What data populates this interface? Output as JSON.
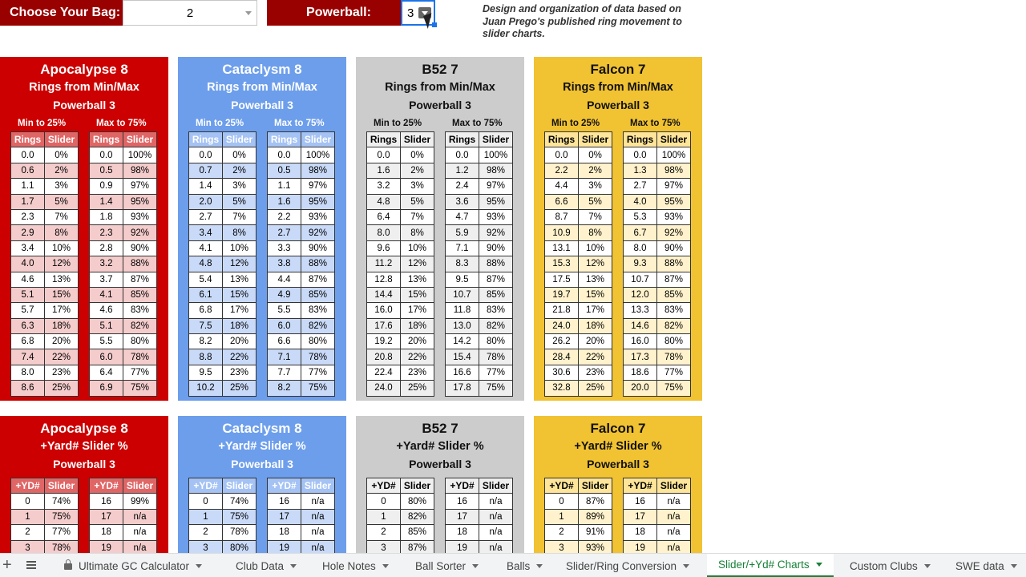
{
  "controls": {
    "bag_label": "Choose Your Bag:",
    "bag_value": "2",
    "powerball_label": "Powerball:",
    "powerball_value": "3",
    "note": "Design and organization of data based on Juan Prego's published ring movement to slider charts."
  },
  "top_panels": [
    {
      "title": "Apocalypse 8",
      "subtitle": "Rings from Min/Max",
      "powerball": "Powerball 3",
      "left_label": "Min to 25%",
      "right_label": "Max to 75%",
      "col1": "Rings",
      "col2": "Slider",
      "rows": [
        [
          "0.0",
          "0%",
          "0.0",
          "100%"
        ],
        [
          "0.6",
          "2%",
          "0.5",
          "98%"
        ],
        [
          "1.1",
          "3%",
          "0.9",
          "97%"
        ],
        [
          "1.7",
          "5%",
          "1.4",
          "95%"
        ],
        [
          "2.3",
          "7%",
          "1.8",
          "93%"
        ],
        [
          "2.9",
          "8%",
          "2.3",
          "92%"
        ],
        [
          "3.4",
          "10%",
          "2.8",
          "90%"
        ],
        [
          "4.0",
          "12%",
          "3.2",
          "88%"
        ],
        [
          "4.6",
          "13%",
          "3.7",
          "87%"
        ],
        [
          "5.1",
          "15%",
          "4.1",
          "85%"
        ],
        [
          "5.7",
          "17%",
          "4.6",
          "83%"
        ],
        [
          "6.3",
          "18%",
          "5.1",
          "82%"
        ],
        [
          "6.8",
          "20%",
          "5.5",
          "80%"
        ],
        [
          "7.4",
          "22%",
          "6.0",
          "78%"
        ],
        [
          "8.0",
          "23%",
          "6.4",
          "77%"
        ],
        [
          "8.6",
          "25%",
          "6.9",
          "75%"
        ]
      ]
    },
    {
      "title": "Cataclysm 8",
      "subtitle": "Rings from Min/Max",
      "powerball": "Powerball 3",
      "left_label": "Min to 25%",
      "right_label": "Max to 75%",
      "col1": "Rings",
      "col2": "Slider",
      "rows": [
        [
          "0.0",
          "0%",
          "0.0",
          "100%"
        ],
        [
          "0.7",
          "2%",
          "0.5",
          "98%"
        ],
        [
          "1.4",
          "3%",
          "1.1",
          "97%"
        ],
        [
          "2.0",
          "5%",
          "1.6",
          "95%"
        ],
        [
          "2.7",
          "7%",
          "2.2",
          "93%"
        ],
        [
          "3.4",
          "8%",
          "2.7",
          "92%"
        ],
        [
          "4.1",
          "10%",
          "3.3",
          "90%"
        ],
        [
          "4.8",
          "12%",
          "3.8",
          "88%"
        ],
        [
          "5.4",
          "13%",
          "4.4",
          "87%"
        ],
        [
          "6.1",
          "15%",
          "4.9",
          "85%"
        ],
        [
          "6.8",
          "17%",
          "5.5",
          "83%"
        ],
        [
          "7.5",
          "18%",
          "6.0",
          "82%"
        ],
        [
          "8.2",
          "20%",
          "6.6",
          "80%"
        ],
        [
          "8.8",
          "22%",
          "7.1",
          "78%"
        ],
        [
          "9.5",
          "23%",
          "7.7",
          "77%"
        ],
        [
          "10.2",
          "25%",
          "8.2",
          "75%"
        ]
      ]
    },
    {
      "title": "B52 7",
      "subtitle": "Rings from Min/Max",
      "powerball": "Powerball 3",
      "left_label": "Min to 25%",
      "right_label": "Max to 75%",
      "col1": "Rings",
      "col2": "Slider",
      "rows": [
        [
          "0.0",
          "0%",
          "0.0",
          "100%"
        ],
        [
          "1.6",
          "2%",
          "1.2",
          "98%"
        ],
        [
          "3.2",
          "3%",
          "2.4",
          "97%"
        ],
        [
          "4.8",
          "5%",
          "3.6",
          "95%"
        ],
        [
          "6.4",
          "7%",
          "4.7",
          "93%"
        ],
        [
          "8.0",
          "8%",
          "5.9",
          "92%"
        ],
        [
          "9.6",
          "10%",
          "7.1",
          "90%"
        ],
        [
          "11.2",
          "12%",
          "8.3",
          "88%"
        ],
        [
          "12.8",
          "13%",
          "9.5",
          "87%"
        ],
        [
          "14.4",
          "15%",
          "10.7",
          "85%"
        ],
        [
          "16.0",
          "17%",
          "11.8",
          "83%"
        ],
        [
          "17.6",
          "18%",
          "13.0",
          "82%"
        ],
        [
          "19.2",
          "20%",
          "14.2",
          "80%"
        ],
        [
          "20.8",
          "22%",
          "15.4",
          "78%"
        ],
        [
          "22.4",
          "23%",
          "16.6",
          "77%"
        ],
        [
          "24.0",
          "25%",
          "17.8",
          "75%"
        ]
      ]
    },
    {
      "title": "Falcon 7",
      "subtitle": "Rings from Min/Max",
      "powerball": "Powerball 3",
      "left_label": "Min to 25%",
      "right_label": "Max to 75%",
      "col1": "Rings",
      "col2": "Slider",
      "rows": [
        [
          "0.0",
          "0%",
          "0.0",
          "100%"
        ],
        [
          "2.2",
          "2%",
          "1.3",
          "98%"
        ],
        [
          "4.4",
          "3%",
          "2.7",
          "97%"
        ],
        [
          "6.6",
          "5%",
          "4.0",
          "95%"
        ],
        [
          "8.7",
          "7%",
          "5.3",
          "93%"
        ],
        [
          "10.9",
          "8%",
          "6.7",
          "92%"
        ],
        [
          "13.1",
          "10%",
          "8.0",
          "90%"
        ],
        [
          "15.3",
          "12%",
          "9.3",
          "88%"
        ],
        [
          "17.5",
          "13%",
          "10.7",
          "87%"
        ],
        [
          "19.7",
          "15%",
          "12.0",
          "85%"
        ],
        [
          "21.8",
          "17%",
          "13.3",
          "83%"
        ],
        [
          "24.0",
          "18%",
          "14.6",
          "82%"
        ],
        [
          "26.2",
          "20%",
          "16.0",
          "80%"
        ],
        [
          "28.4",
          "22%",
          "17.3",
          "78%"
        ],
        [
          "30.6",
          "23%",
          "18.6",
          "77%"
        ],
        [
          "32.8",
          "25%",
          "20.0",
          "75%"
        ]
      ]
    }
  ],
  "bottom_panels": [
    {
      "title": "Apocalypse 8",
      "subtitle": "+Yard# Slider %",
      "powerball": "Powerball 3",
      "col1": "+YD#",
      "col2": "Slider",
      "rows": [
        [
          "0",
          "74%",
          "16",
          "99%"
        ],
        [
          "1",
          "75%",
          "17",
          "n/a"
        ],
        [
          "2",
          "77%",
          "18",
          "n/a"
        ],
        [
          "3",
          "78%",
          "19",
          "n/a"
        ]
      ]
    },
    {
      "title": "Cataclysm 8",
      "subtitle": "+Yard# Slider %",
      "powerball": "Powerball 3",
      "col1": "+YD#",
      "col2": "Slider",
      "rows": [
        [
          "0",
          "74%",
          "16",
          "n/a"
        ],
        [
          "1",
          "75%",
          "17",
          "n/a"
        ],
        [
          "2",
          "78%",
          "18",
          "n/a"
        ],
        [
          "3",
          "80%",
          "19",
          "n/a"
        ]
      ]
    },
    {
      "title": "B52 7",
      "subtitle": "+Yard# Slider %",
      "powerball": "Powerball 3",
      "col1": "+YD#",
      "col2": "Slider",
      "rows": [
        [
          "0",
          "80%",
          "16",
          "n/a"
        ],
        [
          "1",
          "82%",
          "17",
          "n/a"
        ],
        [
          "2",
          "85%",
          "18",
          "n/a"
        ],
        [
          "3",
          "87%",
          "19",
          "n/a"
        ]
      ]
    },
    {
      "title": "Falcon 7",
      "subtitle": "+Yard# Slider %",
      "powerball": "Powerball 3",
      "col1": "+YD#",
      "col2": "Slider",
      "rows": [
        [
          "0",
          "87%",
          "16",
          "n/a"
        ],
        [
          "1",
          "89%",
          "17",
          "n/a"
        ],
        [
          "2",
          "91%",
          "18",
          "n/a"
        ],
        [
          "3",
          "93%",
          "19",
          "n/a"
        ]
      ]
    }
  ],
  "tabs": [
    {
      "label": "Ultimate GC Calculator",
      "locked": true
    },
    {
      "label": "Club Data"
    },
    {
      "label": "Hole Notes"
    },
    {
      "label": "Ball Sorter"
    },
    {
      "label": "Balls"
    },
    {
      "label": "Slider/Ring Conversion"
    },
    {
      "label": "Slider/+Yd# Charts",
      "active": true
    },
    {
      "label": "Custom Clubs"
    },
    {
      "label": "SWE data"
    }
  ],
  "colors": {
    "apocalypse": "#cc0000",
    "cataclysm": "#6d9eeb",
    "b52": "#cccccc",
    "falcon": "#f1c232",
    "control_label": "#990000",
    "active_tab": "#188038"
  }
}
